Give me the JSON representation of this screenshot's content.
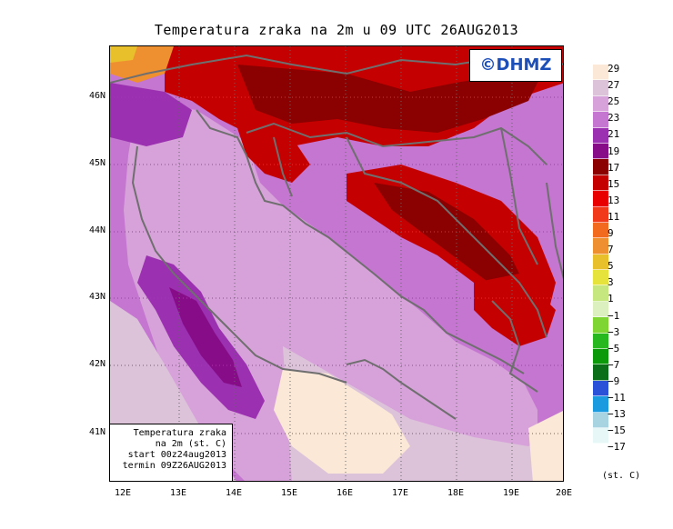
{
  "title": "Temperatura zraka na 2m u 09 UTC 26AUG2013",
  "logo": "©DHMZ",
  "info_box": {
    "line1": "Temperatura zraka",
    "line2": "na 2m (st. C)",
    "line3": "start 00z24aug2013",
    "line4": "termin 09Z26AUG2013"
  },
  "lat_labels": [
    "46N",
    "45N",
    "44N",
    "43N",
    "42N",
    "41N"
  ],
  "lon_labels": [
    "12E",
    "13E",
    "14E",
    "15E",
    "16E",
    "17E",
    "18E",
    "19E",
    "20E"
  ],
  "legend": {
    "labels": [
      "29",
      "27",
      "25",
      "23",
      "21",
      "19",
      "17",
      "15",
      "13",
      "11",
      "9",
      "7",
      "5",
      "3",
      "1",
      "−1",
      "−3",
      "−5",
      "−7",
      "−9",
      "−11",
      "−13",
      "−15",
      "−17"
    ],
    "colors": [
      "#fbe8d6",
      "#dcc3da",
      "#d7a2d9",
      "#c476d0",
      "#9b30b0",
      "#870d88",
      "#8b0000",
      "#c50000",
      "#e80000",
      "#f03a1a",
      "#f26a1e",
      "#ef9030",
      "#e8c02c",
      "#e6e43c",
      "#c6e680",
      "#dcefbf",
      "#7fd632",
      "#27b81f",
      "#0a9a0a",
      "#0b6e18",
      "#2a52d9",
      "#1a9be0",
      "#a8d4e2",
      "#e7f7f8"
    ],
    "units": "(st. C)"
  },
  "map": {
    "background_color": "#d9a6dc",
    "sea_color": "#d7a2d9",
    "hot_sea_color": "#fbe8d6",
    "land_warm_color": "#c50000",
    "land_hot_color": "#8b0000",
    "border_color": "#6f6f6f"
  }
}
